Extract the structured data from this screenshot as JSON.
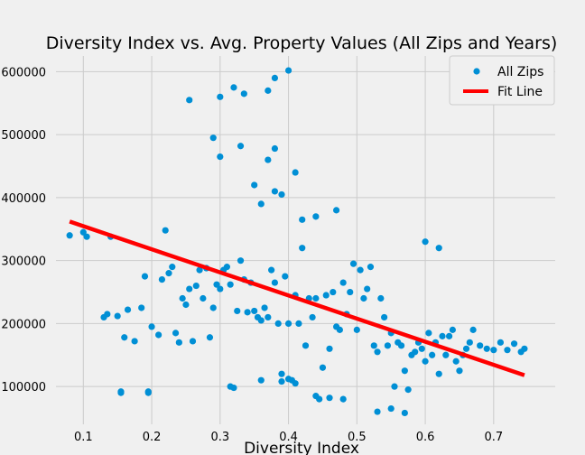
{
  "chart_data": {
    "type": "scatter",
    "title": "Diversity Index vs. Avg. Property Values (All Zips and Years)",
    "xlabel": "Diversity Index",
    "ylabel": "",
    "xlim": [
      0.06,
      0.79
    ],
    "ylim": [
      40000,
      625000
    ],
    "xticks": [
      0.1,
      0.2,
      0.3,
      0.4,
      0.5,
      0.6,
      0.7
    ],
    "xtick_labels": [
      "0.1",
      "0.2",
      "0.3",
      "0.4",
      "0.5",
      "0.6",
      "0.7"
    ],
    "yticks": [
      100000,
      200000,
      300000,
      400000,
      500000,
      600000
    ],
    "ytick_labels": [
      "100000",
      "200000",
      "300000",
      "400000",
      "500000",
      "600000"
    ],
    "grid": true,
    "legend": {
      "position": "top-right",
      "entries": [
        {
          "label": "All Zips",
          "marker": "circle",
          "color": "#008fd5"
        },
        {
          "label": "Fit Line",
          "marker": "line",
          "color": "#ff0000"
        }
      ]
    },
    "series": [
      {
        "name": "All Zips",
        "type": "scatter",
        "color": "#008fd5",
        "x": [
          0.08,
          0.1,
          0.105,
          0.13,
          0.135,
          0.14,
          0.15,
          0.155,
          0.16,
          0.165,
          0.175,
          0.185,
          0.19,
          0.195,
          0.2,
          0.21,
          0.215,
          0.22,
          0.225,
          0.23,
          0.235,
          0.24,
          0.245,
          0.25,
          0.255,
          0.26,
          0.265,
          0.27,
          0.275,
          0.28,
          0.285,
          0.29,
          0.295,
          0.3,
          0.305,
          0.31,
          0.315,
          0.32,
          0.325,
          0.33,
          0.335,
          0.34,
          0.345,
          0.35,
          0.355,
          0.36,
          0.365,
          0.37,
          0.375,
          0.38,
          0.385,
          0.39,
          0.395,
          0.4,
          0.405,
          0.41,
          0.415,
          0.42,
          0.425,
          0.43,
          0.435,
          0.44,
          0.445,
          0.45,
          0.455,
          0.46,
          0.465,
          0.47,
          0.475,
          0.48,
          0.485,
          0.49,
          0.495,
          0.5,
          0.505,
          0.51,
          0.515,
          0.52,
          0.525,
          0.53,
          0.535,
          0.54,
          0.545,
          0.55,
          0.555,
          0.56,
          0.565,
          0.57,
          0.575,
          0.58,
          0.585,
          0.59,
          0.595,
          0.6,
          0.605,
          0.61,
          0.615,
          0.62,
          0.625,
          0.63,
          0.635,
          0.64,
          0.645,
          0.65,
          0.655,
          0.66,
          0.665,
          0.67,
          0.68,
          0.69,
          0.7,
          0.71,
          0.72,
          0.73,
          0.74,
          0.745,
          0.255,
          0.3,
          0.32,
          0.335,
          0.37,
          0.38,
          0.4,
          0.29,
          0.3,
          0.33,
          0.37,
          0.38,
          0.41,
          0.35,
          0.36,
          0.38,
          0.39,
          0.42,
          0.44,
          0.47,
          0.155,
          0.195,
          0.315,
          0.36,
          0.39,
          0.4,
          0.41,
          0.44,
          0.46,
          0.48,
          0.53,
          0.55,
          0.57,
          0.6,
          0.62
        ],
        "y": [
          340000,
          345000,
          338000,
          210000,
          215000,
          338000,
          212000,
          92000,
          178000,
          222000,
          172000,
          225000,
          275000,
          92000,
          195000,
          182000,
          270000,
          348000,
          280000,
          290000,
          185000,
          170000,
          240000,
          230000,
          255000,
          172000,
          260000,
          285000,
          240000,
          288000,
          178000,
          225000,
          262000,
          255000,
          285000,
          290000,
          262000,
          98000,
          220000,
          300000,
          270000,
          218000,
          265000,
          220000,
          210000,
          205000,
          225000,
          210000,
          285000,
          265000,
          200000,
          120000,
          275000,
          200000,
          110000,
          245000,
          200000,
          320000,
          165000,
          240000,
          210000,
          240000,
          80000,
          130000,
          245000,
          160000,
          250000,
          195000,
          190000,
          265000,
          215000,
          250000,
          295000,
          190000,
          285000,
          240000,
          255000,
          290000,
          165000,
          155000,
          240000,
          210000,
          165000,
          185000,
          100000,
          170000,
          165000,
          125000,
          95000,
          150000,
          155000,
          170000,
          160000,
          140000,
          185000,
          150000,
          170000,
          120000,
          180000,
          150000,
          180000,
          190000,
          140000,
          125000,
          150000,
          160000,
          170000,
          190000,
          165000,
          160000,
          158000,
          170000,
          158000,
          168000,
          155000,
          160000,
          555000,
          560000,
          575000,
          565000,
          570000,
          590000,
          602000,
          495000,
          465000,
          482000,
          460000,
          478000,
          440000,
          420000,
          390000,
          410000,
          405000,
          365000,
          370000,
          380000,
          90000,
          90000,
          100000,
          110000,
          108000,
          112000,
          105000,
          85000,
          82000,
          80000,
          60000,
          65000,
          58000,
          330000,
          320000
        ]
      },
      {
        "name": "Fit Line",
        "type": "line",
        "color": "#ff0000",
        "x": [
          0.08,
          0.745
        ],
        "y": [
          362000,
          118000
        ]
      }
    ]
  }
}
